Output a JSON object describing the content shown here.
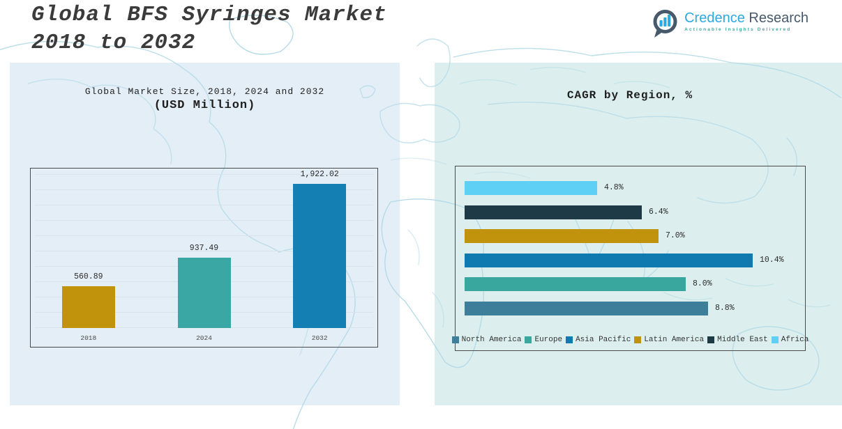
{
  "page": {
    "title_line1": "Global BFS Syringes Market",
    "title_line2": "2018 to 2032"
  },
  "logo": {
    "brand_primary": "Credence",
    "brand_secondary": "Research",
    "tagline": "Actionable Insights Delivered",
    "icon": "bar-chart-speech-bubble-icon",
    "brand_primary_color": "#2BA9E0",
    "brand_secondary_color": "#47596B",
    "tagline_color": "#3FA9A5"
  },
  "colors": {
    "panel_left_bg": "#E4EEF7",
    "panel_right_bg": "#DCEFEE",
    "map_stroke": "#B5DAE7",
    "chart_border": "#4A4A4A",
    "gridline": "#D9E3ED",
    "title_text": "#3B3B3B"
  },
  "chart_data": [
    {
      "type": "bar",
      "title": "Global Market Size, 2018, 2024 and 2032",
      "subtitle": "(USD Million)",
      "categories": [
        "2018",
        "2024",
        "2032"
      ],
      "values": [
        560.89,
        937.49,
        1922.02
      ],
      "value_labels": [
        "560.89",
        "937.49",
        "1,922.02"
      ],
      "bar_colors": [
        "#C1920B",
        "#3AA7A4",
        "#137FB2"
      ],
      "xlabel": "",
      "ylabel": "",
      "ylim": [
        0,
        2100
      ],
      "grid": true,
      "legend": false
    },
    {
      "type": "bar-horizontal",
      "title": "CAGR by Region, %",
      "categories": [
        "Africa",
        "Middle East",
        "Latin America",
        "Asia Pacific",
        "Europe",
        "North America"
      ],
      "values": [
        4.8,
        6.4,
        7.0,
        10.4,
        8.0,
        8.8
      ],
      "value_labels": [
        "4.8%",
        "6.4%",
        "7.0%",
        "10.4%",
        "8.0%",
        "8.8%"
      ],
      "bar_colors": [
        "#5ECFF5",
        "#1E3A47",
        "#C1920B",
        "#0F7AAF",
        "#3AA79E",
        "#3D7F9B"
      ],
      "xlim": [
        0,
        12.6
      ],
      "grid": false,
      "legend_position": "bottom",
      "legend": [
        {
          "label": "North America",
          "color": "#3D7F9B"
        },
        {
          "label": "Europe",
          "color": "#3AA79E"
        },
        {
          "label": "Asia Pacific",
          "color": "#0F7AAF"
        },
        {
          "label": "Latin America",
          "color": "#C1920B"
        },
        {
          "label": "Middle East",
          "color": "#1E3A47"
        },
        {
          "label": "Africa",
          "color": "#5ECFF5"
        }
      ]
    }
  ]
}
